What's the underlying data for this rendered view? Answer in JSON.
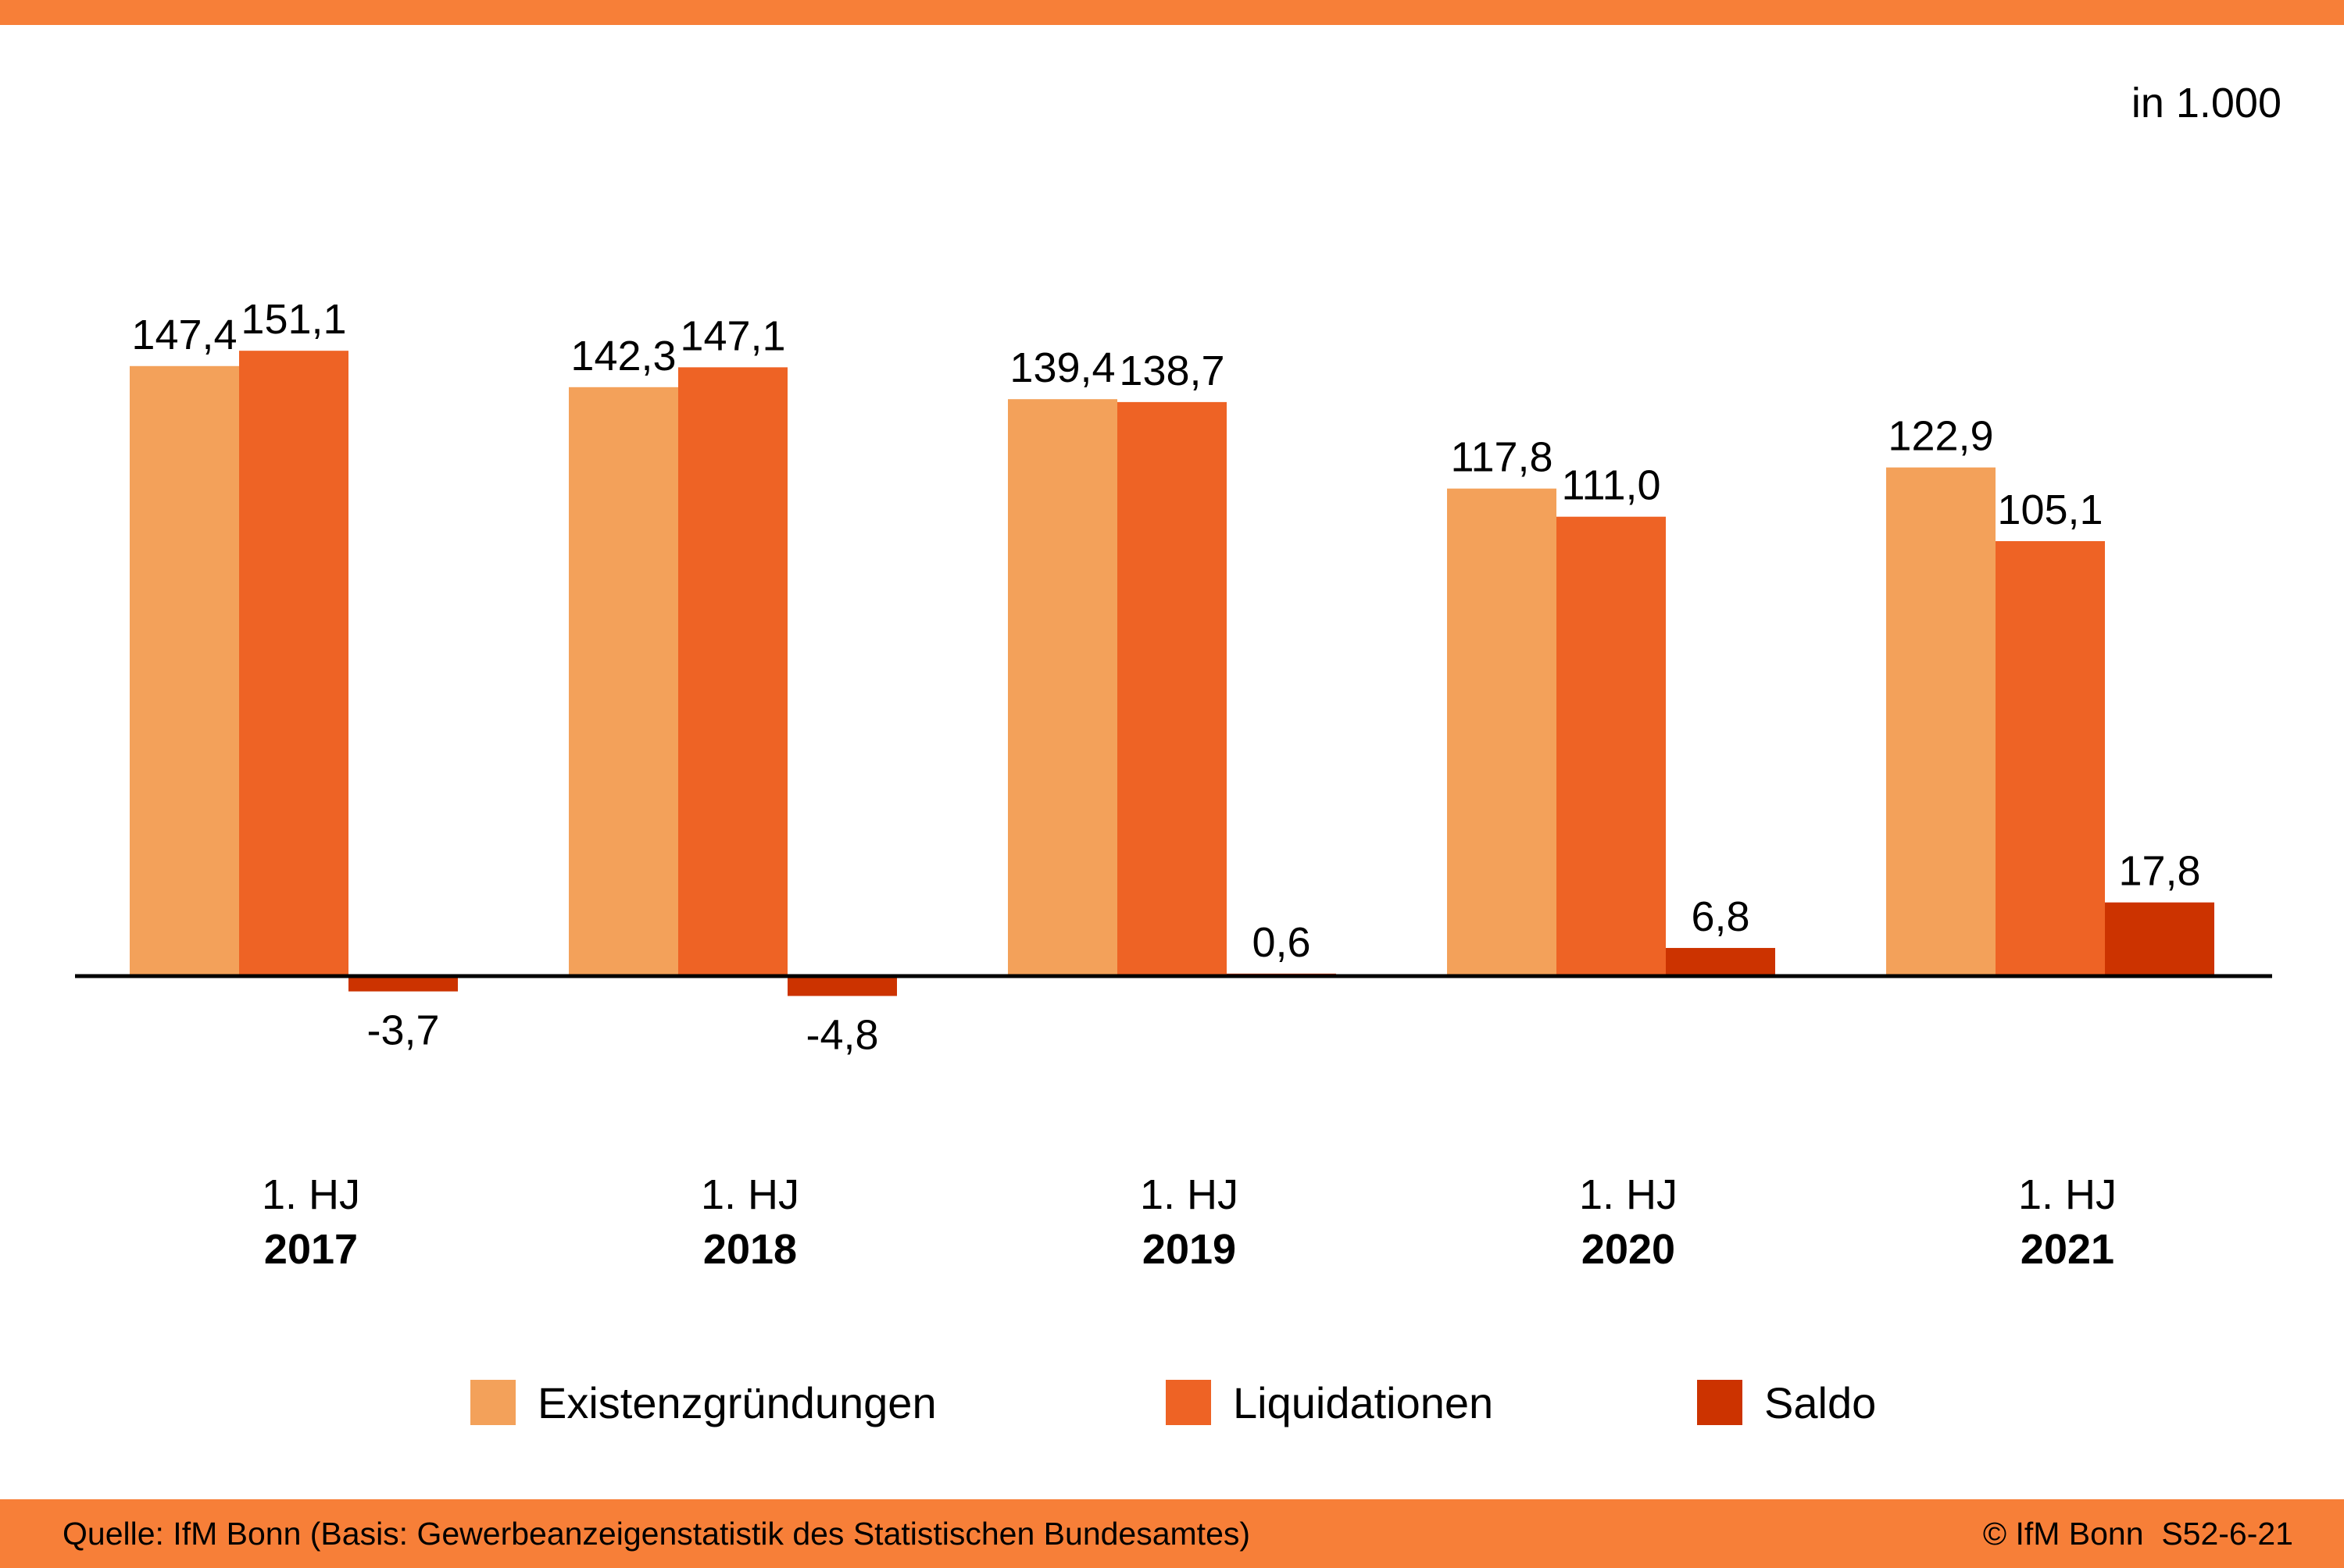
{
  "chart_data": {
    "type": "bar",
    "unit_note": "in 1.000",
    "categories": [
      {
        "line1": "1. HJ",
        "line2": "2017"
      },
      {
        "line1": "1. HJ",
        "line2": "2018"
      },
      {
        "line1": "1. HJ",
        "line2": "2019"
      },
      {
        "line1": "1. HJ",
        "line2": "2020"
      },
      {
        "line1": "1. HJ",
        "line2": "2021"
      }
    ],
    "series": [
      {
        "name": "Existenzgründungen",
        "color": "#F3A15A",
        "values": [
          147.4,
          142.3,
          139.4,
          117.8,
          122.9
        ],
        "labels": [
          "147,4",
          "142,3",
          "139,4",
          "117,8",
          "122,9"
        ]
      },
      {
        "name": "Liquidationen",
        "color": "#EE6325",
        "values": [
          151.1,
          147.1,
          138.7,
          111.0,
          105.1
        ],
        "labels": [
          "151,1",
          "147,1",
          "138,7",
          "111,0",
          "105,1"
        ]
      },
      {
        "name": "Saldo",
        "color": "#CC3300",
        "values": [
          -3.7,
          -4.8,
          0.6,
          6.8,
          17.8
        ],
        "labels": [
          "-3,7",
          "-4,8",
          "0,6",
          "6,8",
          "17,8"
        ]
      }
    ],
    "legend_position": "bottom",
    "grid": false
  },
  "footer": {
    "source": "Quelle: IfM Bonn (Basis: Gewerbeanzeigenstatistik des Statistischen Bundesamtes)",
    "copyright": "© IfM Bonn  S52-6-21"
  },
  "colors": {
    "accent": "#F77F38"
  }
}
